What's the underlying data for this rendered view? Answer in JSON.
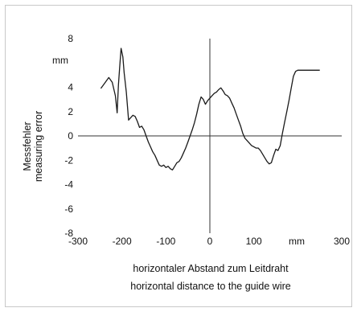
{
  "chart_data": {
    "type": "line",
    "title": "",
    "xlabel_lines": [
      "horizontaler Abstand zum Leitdraht",
      "horizontal distance to the guide wire"
    ],
    "ylabel_lines": [
      "Messfehler",
      "measuring error"
    ],
    "x_unit": "mm",
    "y_unit": "mm",
    "xlim": [
      -300,
      300
    ],
    "ylim": [
      -8,
      8
    ],
    "x_ticks": [
      -300,
      -200,
      -100,
      0,
      100,
      300
    ],
    "x_tick_labels": [
      "-300",
      "-200",
      "-100",
      "0",
      "100",
      "300"
    ],
    "y_ticks": [
      8,
      4,
      2,
      0,
      -2,
      -4,
      -6,
      -8
    ],
    "y_tick_labels": [
      "8",
      "4",
      "2",
      "0",
      "-2",
      "-4",
      "-6",
      "-8"
    ],
    "grid": false,
    "series": [
      {
        "x": [
          -248,
          -240,
          -230,
          -222,
          -215,
          -211,
          -208,
          -205,
          -202,
          -198,
          -195,
          -190,
          -185,
          -180,
          -175,
          -170,
          -165,
          -160,
          -155,
          -150,
          -145,
          -140,
          -135,
          -130,
          -125,
          -120,
          -115,
          -110,
          -105,
          -100,
          -95,
          -90,
          -85,
          -80,
          -75,
          -70,
          -65,
          -60,
          -55,
          -50,
          -45,
          -40,
          -35,
          -30,
          -25,
          -20,
          -15,
          -10,
          -5,
          0,
          5,
          10,
          15,
          20,
          25,
          30,
          35,
          40,
          45,
          50,
          55,
          60,
          65,
          70,
          75,
          80,
          85,
          90,
          95,
          100,
          105,
          110,
          115,
          120,
          125,
          130,
          135,
          140,
          145,
          150,
          155,
          160,
          165,
          170,
          175,
          180,
          185,
          190,
          195,
          200,
          205,
          210,
          215,
          220,
          225,
          230,
          235,
          240,
          245,
          250
        ],
        "y": [
          3.9,
          4.3,
          4.8,
          4.4,
          3.3,
          1.9,
          4.2,
          5.7,
          7.2,
          6.5,
          5.2,
          3.6,
          1.3,
          1.5,
          1.7,
          1.6,
          1.2,
          0.7,
          0.8,
          0.5,
          0.0,
          -0.5,
          -0.9,
          -1.3,
          -1.6,
          -2.0,
          -2.4,
          -2.5,
          -2.4,
          -2.6,
          -2.5,
          -2.7,
          -2.8,
          -2.5,
          -2.2,
          -2.1,
          -1.8,
          -1.4,
          -1.0,
          -0.5,
          0.0,
          0.5,
          1.1,
          1.8,
          2.6,
          3.2,
          3.0,
          2.6,
          2.9,
          3.1,
          3.3,
          3.5,
          3.6,
          3.8,
          3.95,
          3.7,
          3.4,
          3.3,
          3.1,
          2.7,
          2.3,
          1.8,
          1.3,
          0.8,
          0.2,
          -0.2,
          -0.4,
          -0.6,
          -0.8,
          -0.9,
          -1.0,
          -1.0,
          -1.2,
          -1.5,
          -1.8,
          -2.1,
          -2.3,
          -2.2,
          -1.6,
          -1.1,
          -1.2,
          -0.8,
          0.2,
          1.1,
          2.0,
          2.9,
          3.9,
          4.9,
          5.3,
          5.4,
          5.4,
          5.4,
          5.4,
          5.4,
          5.4,
          5.4,
          5.4,
          5.4,
          5.4,
          5.4
        ]
      }
    ]
  },
  "colors": {
    "line": "#1a1a1a",
    "axis": "#333333",
    "frame": "#c8c8c8"
  }
}
